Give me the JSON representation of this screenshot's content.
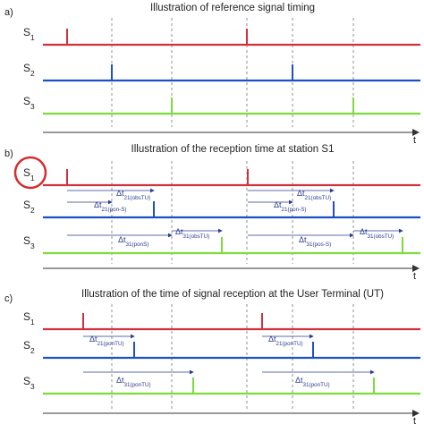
{
  "panels": [
    {
      "label": "a)",
      "title": "Illustration of reference signal timing",
      "time_label": "t",
      "rows": [
        {
          "name": "S",
          "sub": "1"
        },
        {
          "name": "S",
          "sub": "2"
        },
        {
          "name": "S",
          "sub": "3"
        }
      ],
      "intervals": []
    },
    {
      "label": "b)",
      "title": "Illustration of the reception time at station S1",
      "time_label": "t",
      "rows": [
        {
          "name": "S",
          "sub": "1"
        },
        {
          "name": "S",
          "sub": "2"
        },
        {
          "name": "S",
          "sub": "3"
        }
      ],
      "intervals": [
        {
          "main": "Δt",
          "sub": "21(obsTU)"
        },
        {
          "main": "Δt",
          "sub": "21(pon-S)"
        },
        {
          "main": "Δt",
          "sub": "31(obsTU)"
        },
        {
          "main": "Δt",
          "sub": "31(ponS)"
        },
        {
          "main": "Δt",
          "sub": "21(obsTU)"
        },
        {
          "main": "Δt",
          "sub": "21(pon-S)"
        },
        {
          "main": "Δt",
          "sub": "31(obsTU)"
        },
        {
          "main": "Δt",
          "sub": "31(pos-S)"
        }
      ]
    },
    {
      "label": "c)",
      "title": "Illustration of the time of signal reception at the User Terminal (UT)",
      "time_label": "t",
      "rows": [
        {
          "name": "S",
          "sub": "1"
        },
        {
          "name": "S",
          "sub": "2"
        },
        {
          "name": "S",
          "sub": "3"
        }
      ],
      "intervals": [
        {
          "main": "Δt",
          "sub": "21(ponTU)"
        },
        {
          "main": "Δt",
          "sub": "31(ponTU)"
        },
        {
          "main": "Δt",
          "sub": "21(ponTU)"
        },
        {
          "main": "Δt",
          "sub": "31(ponTU)"
        }
      ]
    }
  ]
}
